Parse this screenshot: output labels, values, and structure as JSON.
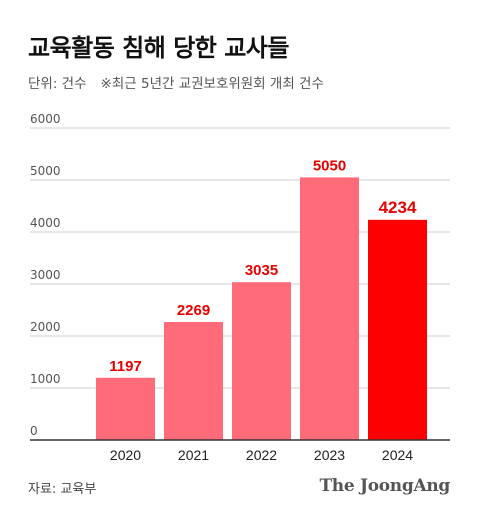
{
  "header": {
    "title": "교육활동 침해 당한 교사들",
    "unit": "단위: 건수",
    "note": "※최근 5년간 교권보호위원회 개최 건수"
  },
  "footer": {
    "source": "자료: 교육부",
    "brand": "The JoongAng"
  },
  "colors": {
    "bar": "#ff6b78",
    "highlight": "#ff0000",
    "label": "#e60000",
    "grid": "#cfcfcf",
    "axis": "#333333"
  },
  "chart_data": {
    "type": "bar",
    "categories": [
      "2020",
      "2021",
      "2022",
      "2023",
      "2024"
    ],
    "values": [
      1197,
      2269,
      3035,
      5050,
      4234
    ],
    "highlight_index": 4,
    "ylim": [
      0,
      6000
    ],
    "yticks": [
      "0",
      "1000",
      "2000",
      "3000",
      "4000",
      "5000",
      "6000"
    ],
    "grid": true,
    "data_labels": true
  }
}
